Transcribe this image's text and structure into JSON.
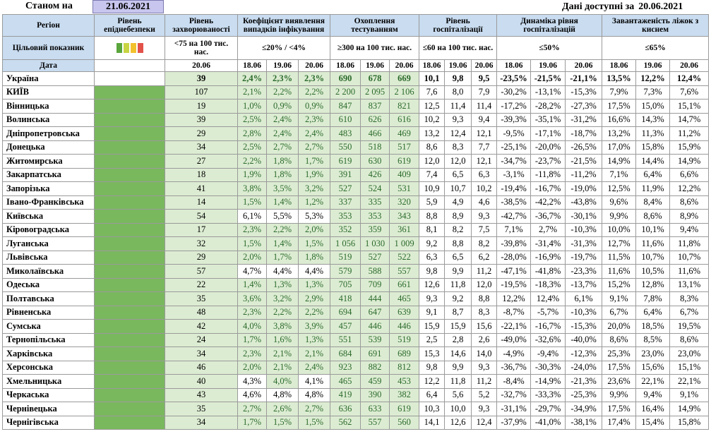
{
  "header": {
    "status_label": "Станом на",
    "status_date": "21.06.2021",
    "available_label": "Дані доступні за",
    "available_date": "20.06.2021"
  },
  "columns": {
    "region": "Регіон",
    "risk": "Рівень епіднебезпеки",
    "incidence": "Рівень захворюваності",
    "detection": "Коефіцієнт виявлення випадків інфікування",
    "testing": "Охоплення тестуванням",
    "hospitalization": "Рівень госпіталізації",
    "dynamics": "Динаміка рівня госпіталізацій",
    "beds": "Завантаженість ліжок з киснем"
  },
  "targets": {
    "label": "Цільовий показник",
    "incidence": "<75 на 100 тис. нас.",
    "detection": "≤20% / <4%",
    "testing": "≥300 на 100 тис. нас.",
    "hospitalization": "≤60 на 100 тис. нас.",
    "dynamics": "≤50%",
    "beds": "≤65%",
    "light_colors": [
      "#5aa63c",
      "#c9d443",
      "#f2c12e",
      "#e2524a"
    ]
  },
  "dates": {
    "label": "Дата",
    "single": "20.06",
    "triple": [
      "18.06",
      "19.06",
      "20.06"
    ]
  },
  "rows": [
    {
      "region": "Україна",
      "inc": "39",
      "det": [
        "2,4%",
        "2,3%",
        "2,3%"
      ],
      "test": [
        "690",
        "678",
        "669"
      ],
      "hosp": [
        "10,1",
        "9,8",
        "9,5"
      ],
      "dyn": [
        "-23,5%",
        "-21,5%",
        "-21,1%"
      ],
      "beds": [
        "13,5%",
        "12,2%",
        "12,4%"
      ],
      "det_ok": [
        1,
        1,
        1
      ]
    },
    {
      "region": "КИЇВ",
      "inc": "107",
      "det": [
        "2,1%",
        "2,2%",
        "2,2%"
      ],
      "test": [
        "2 200",
        "2 095",
        "2 106"
      ],
      "hosp": [
        "7,6",
        "8,0",
        "7,9"
      ],
      "dyn": [
        "-30,2%",
        "-13,1%",
        "-15,3%"
      ],
      "beds": [
        "7,9%",
        "7,3%",
        "7,6%"
      ],
      "det_ok": [
        1,
        1,
        1
      ]
    },
    {
      "region": "Вінницька",
      "inc": "19",
      "det": [
        "1,0%",
        "0,9%",
        "0,9%"
      ],
      "test": [
        "847",
        "837",
        "821"
      ],
      "hosp": [
        "12,5",
        "11,4",
        "11,4"
      ],
      "dyn": [
        "-17,2%",
        "-28,2%",
        "-27,3%"
      ],
      "beds": [
        "17,5%",
        "15,0%",
        "15,1%"
      ],
      "det_ok": [
        1,
        1,
        1
      ]
    },
    {
      "region": "Волинська",
      "inc": "39",
      "det": [
        "2,5%",
        "2,4%",
        "2,3%"
      ],
      "test": [
        "610",
        "626",
        "616"
      ],
      "hosp": [
        "10,2",
        "9,3",
        "9,4"
      ],
      "dyn": [
        "-39,3%",
        "-35,1%",
        "-31,2%"
      ],
      "beds": [
        "16,6%",
        "14,3%",
        "14,7%"
      ],
      "det_ok": [
        1,
        1,
        1
      ]
    },
    {
      "region": "Дніпропетровська",
      "inc": "29",
      "det": [
        "2,8%",
        "2,4%",
        "2,4%"
      ],
      "test": [
        "483",
        "466",
        "469"
      ],
      "hosp": [
        "13,2",
        "12,4",
        "12,1"
      ],
      "dyn": [
        "-9,5%",
        "-17,1%",
        "-18,7%"
      ],
      "beds": [
        "13,2%",
        "11,3%",
        "11,2%"
      ],
      "det_ok": [
        1,
        1,
        1
      ]
    },
    {
      "region": "Донецька",
      "inc": "34",
      "det": [
        "2,5%",
        "2,7%",
        "2,7%"
      ],
      "test": [
        "550",
        "518",
        "517"
      ],
      "hosp": [
        "8,6",
        "8,3",
        "7,7"
      ],
      "dyn": [
        "-25,1%",
        "-20,0%",
        "-26,5%"
      ],
      "beds": [
        "17,0%",
        "15,8%",
        "15,9%"
      ],
      "det_ok": [
        1,
        1,
        1
      ]
    },
    {
      "region": "Житомирська",
      "inc": "27",
      "det": [
        "2,2%",
        "1,8%",
        "1,7%"
      ],
      "test": [
        "619",
        "630",
        "619"
      ],
      "hosp": [
        "12,0",
        "12,0",
        "12,1"
      ],
      "dyn": [
        "-34,7%",
        "-23,7%",
        "-21,5%"
      ],
      "beds": [
        "14,9%",
        "14,4%",
        "14,9%"
      ],
      "det_ok": [
        1,
        1,
        1
      ]
    },
    {
      "region": "Закарпатська",
      "inc": "18",
      "det": [
        "1,9%",
        "1,8%",
        "1,9%"
      ],
      "test": [
        "391",
        "426",
        "409"
      ],
      "hosp": [
        "7,4",
        "6,5",
        "6,3"
      ],
      "dyn": [
        "-3,1%",
        "-11,8%",
        "-11,2%"
      ],
      "beds": [
        "7,1%",
        "6,4%",
        "6,6%"
      ],
      "det_ok": [
        1,
        1,
        1
      ]
    },
    {
      "region": "Запорізька",
      "inc": "41",
      "det": [
        "3,8%",
        "3,5%",
        "3,2%"
      ],
      "test": [
        "527",
        "524",
        "531"
      ],
      "hosp": [
        "10,9",
        "10,7",
        "10,2"
      ],
      "dyn": [
        "-19,4%",
        "-16,7%",
        "-19,0%"
      ],
      "beds": [
        "12,5%",
        "11,9%",
        "12,2%"
      ],
      "det_ok": [
        1,
        1,
        1
      ]
    },
    {
      "region": "Івано-Франківська",
      "inc": "14",
      "det": [
        "1,5%",
        "1,4%",
        "1,2%"
      ],
      "test": [
        "337",
        "335",
        "320"
      ],
      "hosp": [
        "5,9",
        "4,9",
        "4,6"
      ],
      "dyn": [
        "-38,5%",
        "-42,2%",
        "-43,8%"
      ],
      "beds": [
        "9,6%",
        "8,4%",
        "8,6%"
      ],
      "det_ok": [
        1,
        1,
        1
      ],
      "wrap": true
    },
    {
      "region": "Київська",
      "inc": "54",
      "det": [
        "6,1%",
        "5,5%",
        "5,3%"
      ],
      "test": [
        "353",
        "353",
        "343"
      ],
      "hosp": [
        "8,8",
        "8,9",
        "9,3"
      ],
      "dyn": [
        "-42,7%",
        "-36,7%",
        "-30,1%"
      ],
      "beds": [
        "9,9%",
        "8,6%",
        "8,9%"
      ],
      "det_ok": [
        0,
        0,
        0
      ]
    },
    {
      "region": "Кіровоградська",
      "inc": "17",
      "det": [
        "2,3%",
        "2,2%",
        "2,0%"
      ],
      "test": [
        "352",
        "359",
        "361"
      ],
      "hosp": [
        "8,1",
        "8,2",
        "7,5"
      ],
      "dyn": [
        "7,1%",
        "2,7%",
        "-10,3%"
      ],
      "beds": [
        "10,0%",
        "10,1%",
        "9,4%"
      ],
      "det_ok": [
        1,
        1,
        1
      ]
    },
    {
      "region": "Луганська",
      "inc": "32",
      "det": [
        "1,5%",
        "1,4%",
        "1,5%"
      ],
      "test": [
        "1 056",
        "1 030",
        "1 009"
      ],
      "hosp": [
        "9,2",
        "8,8",
        "8,2"
      ],
      "dyn": [
        "-39,8%",
        "-31,4%",
        "-31,3%"
      ],
      "beds": [
        "12,7%",
        "11,6%",
        "11,8%"
      ],
      "det_ok": [
        1,
        1,
        1
      ]
    },
    {
      "region": "Львівська",
      "inc": "29",
      "det": [
        "2,0%",
        "1,7%",
        "1,8%"
      ],
      "test": [
        "519",
        "527",
        "522"
      ],
      "hosp": [
        "6,3",
        "6,5",
        "6,2"
      ],
      "dyn": [
        "-28,0%",
        "-16,9%",
        "-19,7%"
      ],
      "beds": [
        "11,5%",
        "10,7%",
        "10,7%"
      ],
      "det_ok": [
        1,
        1,
        1
      ]
    },
    {
      "region": "Миколаївська",
      "inc": "57",
      "det": [
        "4,7%",
        "4,4%",
        "4,4%"
      ],
      "test": [
        "579",
        "588",
        "557"
      ],
      "hosp": [
        "9,8",
        "9,9",
        "11,2"
      ],
      "dyn": [
        "-47,1%",
        "-41,8%",
        "-23,3%"
      ],
      "beds": [
        "11,6%",
        "10,5%",
        "11,6%"
      ],
      "det_ok": [
        0,
        0,
        0
      ]
    },
    {
      "region": "Одеська",
      "inc": "22",
      "det": [
        "1,4%",
        "1,3%",
        "1,3%"
      ],
      "test": [
        "705",
        "709",
        "661"
      ],
      "hosp": [
        "12,6",
        "11,8",
        "12,0"
      ],
      "dyn": [
        "-19,5%",
        "-18,3%",
        "-13,7%"
      ],
      "beds": [
        "15,2%",
        "12,8%",
        "13,1%"
      ],
      "det_ok": [
        1,
        1,
        1
      ]
    },
    {
      "region": "Полтавська",
      "inc": "35",
      "det": [
        "3,6%",
        "3,2%",
        "2,9%"
      ],
      "test": [
        "418",
        "444",
        "465"
      ],
      "hosp": [
        "9,3",
        "9,2",
        "8,8"
      ],
      "dyn": [
        "12,2%",
        "12,4%",
        "6,1%"
      ],
      "beds": [
        "9,1%",
        "7,8%",
        "8,3%"
      ],
      "det_ok": [
        1,
        1,
        1
      ]
    },
    {
      "region": "Рівненська",
      "inc": "48",
      "det": [
        "2,3%",
        "2,2%",
        "2,2%"
      ],
      "test": [
        "694",
        "647",
        "639"
      ],
      "hosp": [
        "9,1",
        "8,7",
        "8,3"
      ],
      "dyn": [
        "-8,7%",
        "-5,7%",
        "-10,3%"
      ],
      "beds": [
        "6,7%",
        "6,4%",
        "6,7%"
      ],
      "det_ok": [
        1,
        1,
        1
      ]
    },
    {
      "region": "Сумська",
      "inc": "42",
      "det": [
        "4,0%",
        "3,8%",
        "3,9%"
      ],
      "test": [
        "457",
        "446",
        "446"
      ],
      "hosp": [
        "15,9",
        "15,9",
        "15,6"
      ],
      "dyn": [
        "-22,1%",
        "-16,7%",
        "-15,3%"
      ],
      "beds": [
        "20,0%",
        "18,5%",
        "19,5%"
      ],
      "det_ok": [
        1,
        1,
        1
      ]
    },
    {
      "region": "Тернопільська",
      "inc": "24",
      "det": [
        "1,7%",
        "1,6%",
        "1,3%"
      ],
      "test": [
        "551",
        "539",
        "519"
      ],
      "hosp": [
        "2,5",
        "2,8",
        "2,6"
      ],
      "dyn": [
        "-49,0%",
        "-32,6%",
        "-40,0%"
      ],
      "beds": [
        "8,6%",
        "8,5%",
        "8,6%"
      ],
      "det_ok": [
        1,
        1,
        1
      ]
    },
    {
      "region": "Харківська",
      "inc": "34",
      "det": [
        "2,3%",
        "2,1%",
        "2,1%"
      ],
      "test": [
        "684",
        "691",
        "689"
      ],
      "hosp": [
        "15,3",
        "14,6",
        "14,0"
      ],
      "dyn": [
        "-4,9%",
        "-9,4%",
        "-12,3%"
      ],
      "beds": [
        "25,3%",
        "23,0%",
        "23,0%"
      ],
      "det_ok": [
        1,
        1,
        1
      ]
    },
    {
      "region": "Херсонська",
      "inc": "46",
      "det": [
        "2,0%",
        "2,1%",
        "2,4%"
      ],
      "test": [
        "923",
        "882",
        "812"
      ],
      "hosp": [
        "9,8",
        "9,9",
        "9,3"
      ],
      "dyn": [
        "-36,7%",
        "-30,3%",
        "-24,0%"
      ],
      "beds": [
        "17,5%",
        "15,6%",
        "15,1%"
      ],
      "det_ok": [
        1,
        1,
        1
      ]
    },
    {
      "region": "Хмельницька",
      "inc": "40",
      "det": [
        "4,3%",
        "4,0%",
        "4,1%"
      ],
      "test": [
        "465",
        "459",
        "453"
      ],
      "hosp": [
        "12,2",
        "11,8",
        "11,2"
      ],
      "dyn": [
        "-8,4%",
        "-14,9%",
        "-21,3%"
      ],
      "beds": [
        "23,6%",
        "22,1%",
        "22,1%"
      ],
      "det_ok": [
        0,
        1,
        0
      ]
    },
    {
      "region": "Черкаська",
      "inc": "43",
      "det": [
        "4,6%",
        "4,8%",
        "4,8%"
      ],
      "test": [
        "419",
        "390",
        "382"
      ],
      "hosp": [
        "6,4",
        "5,6",
        "5,2"
      ],
      "dyn": [
        "-32,7%",
        "-33,3%",
        "-25,3%"
      ],
      "beds": [
        "9,9%",
        "9,4%",
        "9,1%"
      ],
      "det_ok": [
        0,
        0,
        0
      ]
    },
    {
      "region": "Чернівецька",
      "inc": "35",
      "det": [
        "2,7%",
        "2,6%",
        "2,7%"
      ],
      "test": [
        "636",
        "633",
        "619"
      ],
      "hosp": [
        "10,3",
        "10,0",
        "9,3"
      ],
      "dyn": [
        "-31,1%",
        "-29,7%",
        "-34,9%"
      ],
      "beds": [
        "17,5%",
        "16,4%",
        "14,9%"
      ],
      "det_ok": [
        1,
        1,
        1
      ]
    },
    {
      "region": "Чернігівська",
      "inc": "34",
      "det": [
        "1,7%",
        "1,5%",
        "1,5%"
      ],
      "test": [
        "562",
        "557",
        "560"
      ],
      "hosp": [
        "14,1",
        "12,6",
        "12,4"
      ],
      "dyn": [
        "-37,9%",
        "-41,0%",
        "-38,1%"
      ],
      "beds": [
        "17,4%",
        "15,4%",
        "15,8%"
      ],
      "det_ok": [
        1,
        1,
        1
      ]
    }
  ]
}
